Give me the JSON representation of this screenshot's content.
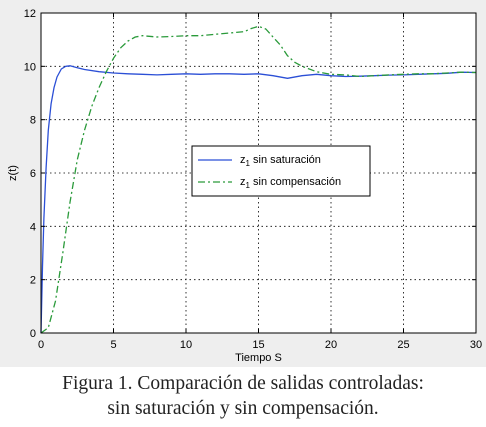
{
  "chart_data": {
    "type": "line",
    "xlabel": "Tiempo S",
    "ylabel": "z(t)",
    "xlim": [
      0,
      30
    ],
    "ylim": [
      0,
      12
    ],
    "xticks": [
      0,
      5,
      10,
      15,
      20,
      25,
      30
    ],
    "yticks": [
      0,
      2,
      4,
      6,
      8,
      10,
      12
    ],
    "grid": true,
    "grid_style": "dotted",
    "legend_position": "center",
    "series": [
      {
        "name": "z₁ sin saturación",
        "color": "#2b4fd6",
        "dash": "solid",
        "x": [
          0,
          0.1,
          0.2,
          0.35,
          0.5,
          0.7,
          0.9,
          1.1,
          1.4,
          1.7,
          2.0,
          2.5,
          3,
          4,
          5,
          6,
          7,
          8,
          9,
          10,
          11,
          12,
          13,
          14,
          15,
          16,
          17,
          18,
          19,
          20,
          21,
          22,
          23,
          24,
          25,
          26,
          27,
          28,
          29,
          30
        ],
        "y": [
          0,
          2.5,
          4.3,
          6.2,
          7.6,
          8.6,
          9.2,
          9.6,
          9.9,
          10.0,
          10.02,
          9.95,
          9.88,
          9.8,
          9.75,
          9.72,
          9.7,
          9.68,
          9.7,
          9.72,
          9.7,
          9.72,
          9.72,
          9.7,
          9.72,
          9.65,
          9.55,
          9.65,
          9.7,
          9.65,
          9.62,
          9.63,
          9.65,
          9.67,
          9.68,
          9.7,
          9.72,
          9.74,
          9.78,
          9.77
        ]
      },
      {
        "name": "z₁ sin compensación",
        "color": "#2a9a3a",
        "dash": "dashdot",
        "x": [
          0,
          0.5,
          1,
          1.5,
          2,
          2.5,
          3,
          3.5,
          4,
          4.5,
          5,
          5.5,
          6,
          6.5,
          7,
          8,
          9,
          10,
          11,
          12,
          13,
          14,
          14.5,
          15,
          15.5,
          16,
          16.5,
          17,
          17.5,
          18,
          19,
          20,
          21,
          22,
          23,
          24,
          25,
          26,
          27,
          28,
          29,
          30
        ],
        "y": [
          0,
          0.2,
          1.2,
          3.0,
          4.9,
          6.5,
          7.6,
          8.5,
          9.2,
          9.8,
          10.3,
          10.7,
          10.95,
          11.1,
          11.15,
          11.1,
          11.12,
          11.15,
          11.15,
          11.2,
          11.25,
          11.3,
          11.42,
          11.5,
          11.4,
          11.1,
          10.8,
          10.4,
          10.15,
          10.0,
          9.8,
          9.7,
          9.68,
          9.62,
          9.65,
          9.68,
          9.7,
          9.72,
          9.72,
          9.75,
          9.78,
          9.77
        ]
      }
    ]
  },
  "legend": {
    "items": [
      {
        "prefix": "z",
        "subscript": "1",
        "suffix": " sin saturación"
      },
      {
        "prefix": "z",
        "subscript": "1",
        "suffix": " sin compensación"
      }
    ]
  },
  "caption": {
    "line1": "Figura 1. Comparación de salidas controladas:",
    "line2": "sin saturación y sin compensación."
  }
}
